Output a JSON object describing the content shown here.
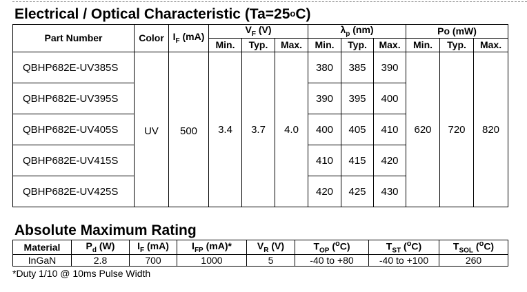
{
  "electrical": {
    "title_main": "Electrical / Optical Characteristic (Ta=25",
    "title_deg": "o",
    "title_unit": "C)",
    "headers": {
      "part_number": "Part Number",
      "color": "Color",
      "if_label": "I",
      "if_sub": "F",
      "if_unit": " (mA)",
      "vf_label": "V",
      "vf_sub": "F",
      "vf_unit": " (V)",
      "lp_label": "λ",
      "lp_sub": "p",
      "lp_unit": " (nm)",
      "po_label": "Po (mW)",
      "min": "Min.",
      "typ": "Typ.",
      "max": "Max."
    },
    "color_value": "UV",
    "if_value": "500",
    "vf": {
      "min": "3.4",
      "typ": "3.7",
      "max": "4.0"
    },
    "po": {
      "min": "620",
      "typ": "720",
      "max": "820"
    },
    "rows": [
      {
        "part": "QBHP682E-UV385S",
        "lp_min": "380",
        "lp_typ": "385",
        "lp_max": "390"
      },
      {
        "part": "QBHP682E-UV395S",
        "lp_min": "390",
        "lp_typ": "395",
        "lp_max": "400"
      },
      {
        "part": "QBHP682E-UV405S",
        "lp_min": "400",
        "lp_typ": "405",
        "lp_max": "410"
      },
      {
        "part": "QBHP682E-UV415S",
        "lp_min": "410",
        "lp_typ": "415",
        "lp_max": "420"
      },
      {
        "part": "QBHP682E-UV425S",
        "lp_min": "420",
        "lp_typ": "425",
        "lp_max": "430"
      }
    ]
  },
  "absolute": {
    "title": "Absolute Maximum Rating",
    "headers": {
      "material": "Material",
      "pd_label": "P",
      "pd_sub": "d",
      "pd_unit": " (W)",
      "if_label": "I",
      "if_sub": "F",
      "if_unit": " (mA)",
      "ifp_label": "I",
      "ifp_sub": "FP",
      "ifp_unit": " (mA)*",
      "vr_label": "V",
      "vr_sub": "R",
      "vr_unit": " (V)",
      "top_label": "T",
      "top_sub": "OP",
      "top_unit_pre": " (",
      "top_deg": "o",
      "top_unit_post": "C)",
      "tst_label": "T",
      "tst_sub": "ST",
      "tst_unit_pre": " (",
      "tst_deg": "o",
      "tst_unit_post": "C)",
      "tsol_label": "T",
      "tsol_sub": "SOL",
      "tsol_unit_pre": " (",
      "tsol_deg": "o",
      "tsol_unit_post": "C)"
    },
    "values": {
      "material": "InGaN",
      "pd": "2.8",
      "if": "700",
      "ifp": "1000",
      "vr": "5",
      "top": "-40 to +80",
      "tst": "-40 to +100",
      "tsol": "260"
    },
    "footnote": "*Duty 1/10 @ 10ms Pulse Width"
  }
}
